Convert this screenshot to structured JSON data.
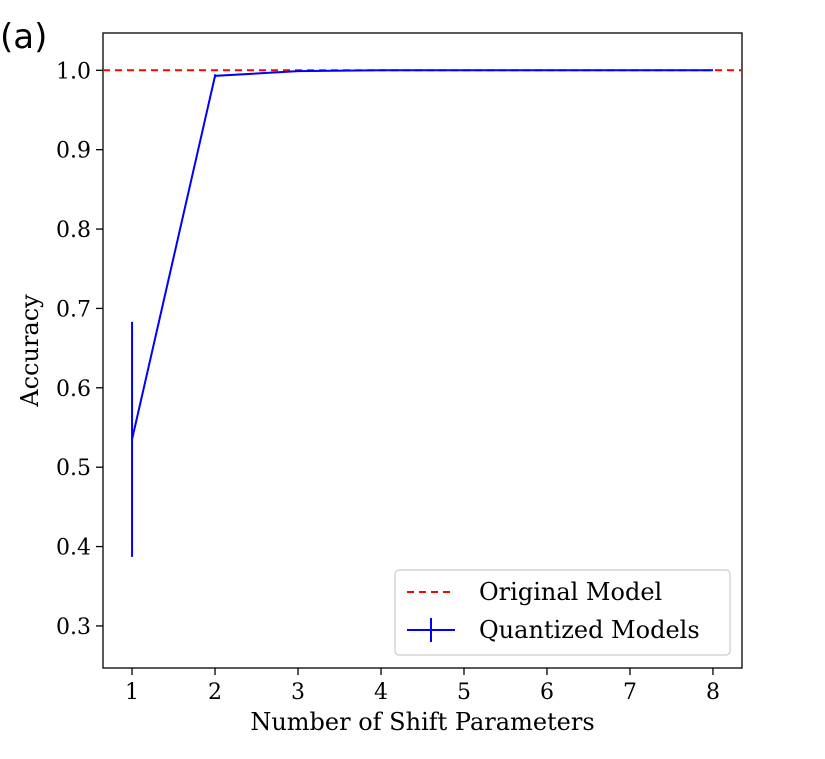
{
  "panel_label": "(a)",
  "chart_data": {
    "type": "line",
    "title": "",
    "xlabel": "Number of Shift Parameters",
    "ylabel": "Accuracy",
    "xlim": [
      0.65,
      8.35
    ],
    "ylim": [
      0.247,
      1.047
    ],
    "xticks": [
      1,
      2,
      3,
      4,
      5,
      6,
      7,
      8
    ],
    "yticks": [
      0.3,
      0.4,
      0.5,
      0.6,
      0.7,
      0.8,
      0.9,
      1.0
    ],
    "xtick_labels": [
      "1",
      "2",
      "3",
      "4",
      "5",
      "6",
      "7",
      "8"
    ],
    "ytick_labels": [
      "0.3",
      "0.4",
      "0.5",
      "0.6",
      "0.7",
      "0.8",
      "0.9",
      "1.0"
    ],
    "grid": false,
    "legend_position": "bottom-right",
    "series": [
      {
        "name": "Original Model",
        "style": "dashed",
        "color": "#ff0000",
        "hline": 1.0
      },
      {
        "name": "Quantized Models",
        "style": "solid-errorbar",
        "color": "#0000ff",
        "x": [
          1,
          2,
          3,
          4,
          5,
          6,
          7,
          8
        ],
        "y": [
          0.535,
          0.993,
          0.999,
          1.0,
          1.0,
          1.0,
          1.0,
          1.0
        ],
        "yerr": [
          0.148,
          0.002,
          0.0,
          0.0,
          0.0,
          0.0,
          0.0,
          0.0
        ]
      }
    ]
  }
}
